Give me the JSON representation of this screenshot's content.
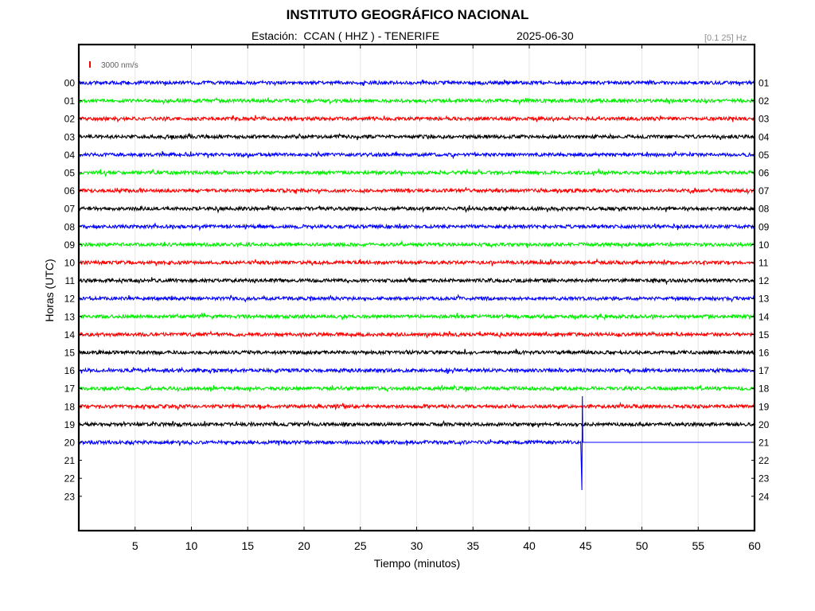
{
  "header": {
    "title": "INSTITUTO GEOGRÁFICO NACIONAL",
    "subtitle": "Estación:  CCAN ( HHZ ) - TENERIFE",
    "date": "2025-06-30",
    "band": "[0.1 25] Hz"
  },
  "chart_data": {
    "type": "line",
    "xlabel": "Tiempo (minutos)",
    "ylabel": "Horas (UTC)",
    "xlim": [
      0,
      60
    ],
    "x_ticks": [
      5,
      10,
      15,
      20,
      25,
      30,
      35,
      40,
      45,
      50,
      55,
      60
    ],
    "left_ticks": [
      "00",
      "01",
      "02",
      "03",
      "04",
      "05",
      "06",
      "07",
      "08",
      "09",
      "10",
      "11",
      "12",
      "13",
      "14",
      "15",
      "16",
      "17",
      "18",
      "19",
      "20",
      "21",
      "22",
      "23"
    ],
    "right_ticks": [
      "01",
      "02",
      "03",
      "04",
      "05",
      "06",
      "07",
      "08",
      "09",
      "10",
      "11",
      "12",
      "13",
      "14",
      "15",
      "16",
      "17",
      "18",
      "19",
      "20",
      "21",
      "22",
      "23",
      "24"
    ],
    "scale_label": "3000 nm/s",
    "grid": true,
    "colors": [
      "#0000ff",
      "#00ee00",
      "#ff0000",
      "#000000"
    ],
    "series": [
      {
        "values": [
          0,
          60
        ]
      },
      {
        "values": [
          0,
          60
        ]
      },
      {
        "values": [
          0,
          60
        ]
      },
      {
        "values": [
          0,
          60
        ]
      },
      {
        "values": [
          0,
          60
        ]
      },
      {
        "values": [
          0,
          60
        ]
      },
      {
        "values": [
          0,
          60
        ]
      },
      {
        "values": [
          0,
          60
        ]
      },
      {
        "values": [
          0,
          60
        ]
      },
      {
        "values": [
          0,
          60
        ]
      },
      {
        "values": [
          0,
          60
        ]
      },
      {
        "values": [
          0,
          60
        ]
      },
      {
        "values": [
          0,
          60
        ]
      },
      {
        "values": [
          0,
          60
        ]
      },
      {
        "values": [
          0,
          60
        ]
      },
      {
        "values": [
          0,
          60
        ]
      },
      {
        "values": [
          0,
          60
        ]
      },
      {
        "values": [
          0,
          60
        ]
      },
      {
        "values": [
          0,
          60
        ]
      },
      {
        "values": [
          0,
          60
        ]
      },
      {
        "values": [
          0,
          44.6
        ],
        "event_minute": 44.6,
        "flat_after": true
      }
    ]
  }
}
